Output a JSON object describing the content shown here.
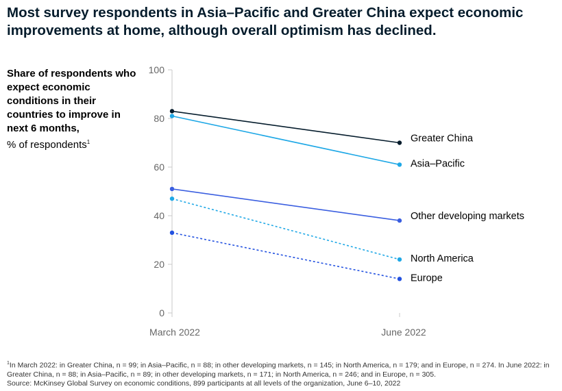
{
  "title": "Most survey respondents in Asia–Pacific and Greater China expect economic improvements at home, although overall optimism has declined.",
  "ylabel_bold": "Share of respondents who expect economic conditions in their countries to improve in next 6 months,",
  "ylabel_unit": "% of respondents",
  "ylabel_sup": "1",
  "footnote_sup": "1",
  "footnote_text": "In March 2022: in Greater China, n = 99; in Asia–Pacific, n = 88; in other developing markets, n = 145; in North America, n = 179; and in Europe, n = 274. In June 2022: in Greater China, n = 88; in Asia–Pacific, n = 89; in other developing markets, n = 171; in North America, n = 246; and in Europe, n = 305.",
  "source": "Source: McKinsey Global Survey on economic conditions, 899 participants at all levels of the organization, June 6–10, 2022",
  "chart_data": {
    "type": "line",
    "x": [
      "March 2022",
      "June 2022"
    ],
    "ylim": [
      0,
      100
    ],
    "yticks": [
      0,
      20,
      40,
      60,
      80,
      100
    ],
    "grid": false,
    "series": [
      {
        "name": "Greater China",
        "values": [
          83,
          70
        ],
        "color": "#051c2c",
        "dashed": false
      },
      {
        "name": "Asia–Pacific",
        "values": [
          81,
          61
        ],
        "color": "#1fa8e6",
        "dashed": false
      },
      {
        "name": "Other developing markets",
        "values": [
          51,
          38
        ],
        "color": "#3a5ee0",
        "dashed": false
      },
      {
        "name": "North America",
        "values": [
          47,
          22
        ],
        "color": "#1fa8e6",
        "dashed": true
      },
      {
        "name": "Europe",
        "values": [
          33,
          14
        ],
        "color": "#2251e0",
        "dashed": true
      }
    ]
  }
}
